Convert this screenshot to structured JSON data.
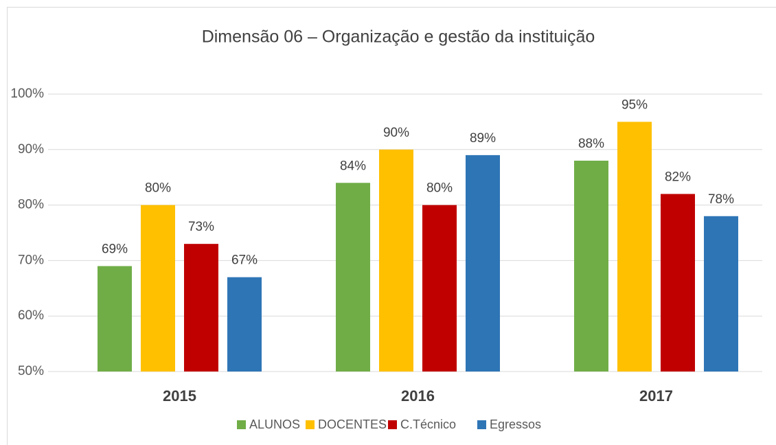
{
  "chart_data": {
    "type": "bar",
    "title": "Dimensão 06 – Organização e gestão da instituição",
    "categories": [
      "2015",
      "2016",
      "2017"
    ],
    "series": [
      {
        "name": "ALUNOS",
        "color": "#70ad47",
        "values": [
          69,
          84,
          88
        ],
        "value_labels": [
          "69%",
          "84%",
          "88%"
        ]
      },
      {
        "name": "DOCENTES",
        "color": "#ffc000",
        "values": [
          80,
          90,
          95
        ],
        "value_labels": [
          "80%",
          "90%",
          "95%"
        ]
      },
      {
        "name": "C.Técnico",
        "color": "#c00000",
        "values": [
          73,
          80,
          82
        ],
        "value_labels": [
          "73%",
          "80%",
          "82%"
        ]
      },
      {
        "name": "Egressos",
        "color": "#2e75b6",
        "values": [
          67,
          89,
          78
        ],
        "value_labels": [
          "67%",
          "89%",
          "78%"
        ]
      }
    ],
    "ylim": [
      50,
      100
    ],
    "yticks": [
      {
        "value": 50,
        "label": "50%"
      },
      {
        "value": 60,
        "label": "60%"
      },
      {
        "value": 70,
        "label": "70%"
      },
      {
        "value": 80,
        "label": "80%"
      },
      {
        "value": 90,
        "label": "90%"
      },
      {
        "value": 100,
        "label": "100%"
      }
    ],
    "grid": true,
    "legend": "bottom"
  }
}
